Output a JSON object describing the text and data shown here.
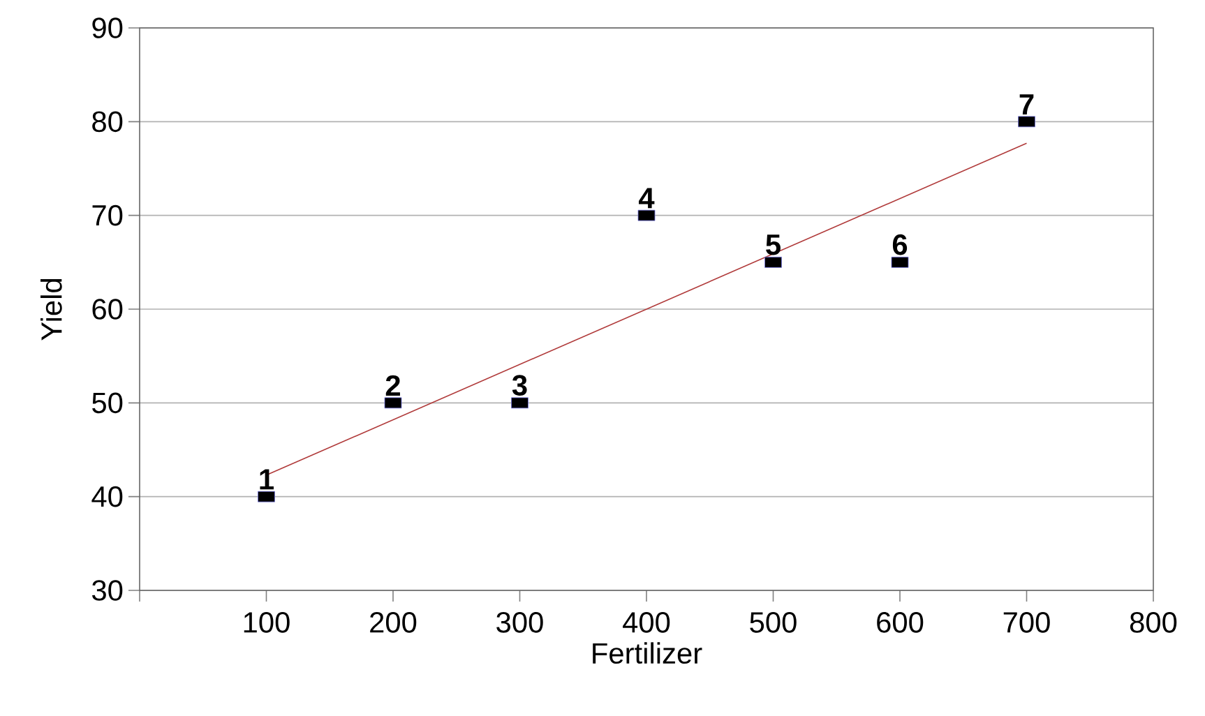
{
  "chart_data": {
    "type": "scatter",
    "xlabel": "Fertilizer",
    "ylabel": "Yield",
    "xlim": [
      0,
      800
    ],
    "ylim": [
      30,
      90
    ],
    "xticks": [
      {
        "value": 0,
        "label": null
      },
      100,
      200,
      300,
      400,
      500,
      600,
      700,
      800
    ],
    "yticks": [
      30,
      40,
      50,
      60,
      70,
      80,
      90
    ],
    "grid": "y",
    "marker": "square",
    "series": [
      {
        "color": "#000000",
        "x": [
          100,
          200,
          300,
          400,
          500,
          600,
          700
        ],
        "values": [
          40,
          50,
          50,
          70,
          65,
          65,
          80
        ]
      },
      {
        "type": "line",
        "color": "#b03a3a",
        "marker": "none",
        "x": [
          100,
          700
        ],
        "values": [
          42.3,
          77.7
        ]
      }
    ],
    "annotations": [
      {
        "text": "1",
        "x": 100,
        "y": 40
      },
      {
        "text": "2",
        "x": 200,
        "y": 50
      },
      {
        "text": "3",
        "x": 300,
        "y": 50
      },
      {
        "text": "4",
        "x": 400,
        "y": 70
      },
      {
        "text": "5",
        "x": 500,
        "y": 65
      },
      {
        "text": "6",
        "x": 600,
        "y": 65
      },
      {
        "text": "7",
        "x": 700,
        "y": 80
      }
    ]
  }
}
